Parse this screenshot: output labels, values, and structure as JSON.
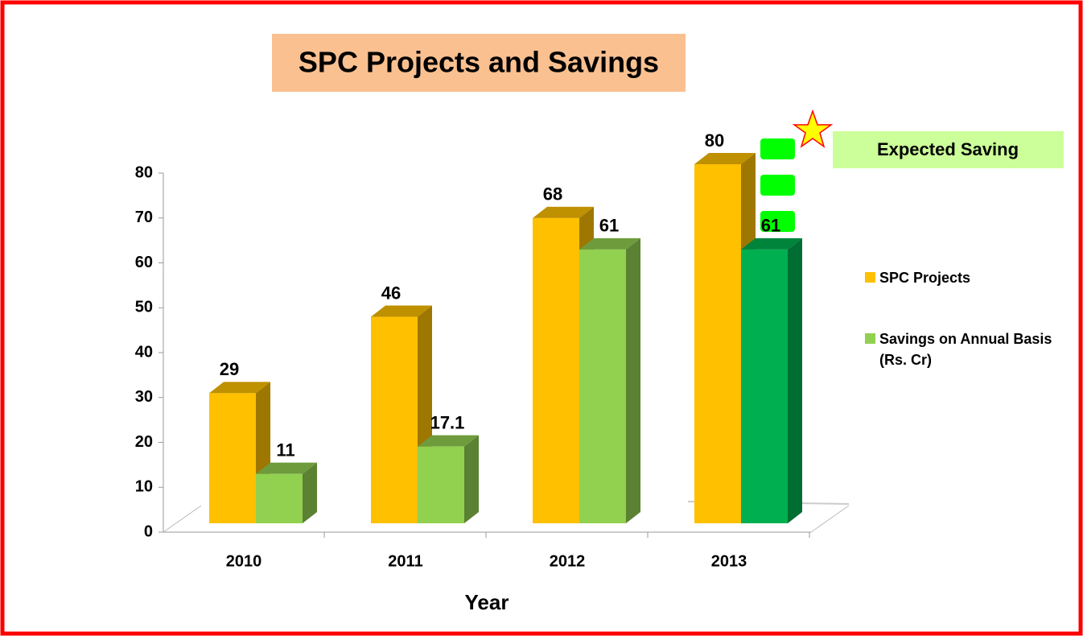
{
  "chart_data": {
    "type": "bar3d",
    "title": "SPC Projects and Savings",
    "categories": [
      "2010",
      "2011",
      "2012",
      "2013"
    ],
    "series": [
      {
        "name": "SPC Projects",
        "color": "#ffc000",
        "values": [
          29,
          46,
          68,
          80
        ]
      },
      {
        "name": "Savings on Annual Basis (Rs. Cr)",
        "color": "#92d050",
        "colors": [
          "#92d050",
          "#92d050",
          "#92d050",
          "#00b050"
        ],
        "values": [
          11,
          17.1,
          61,
          61
        ]
      }
    ],
    "xlabel": "Year",
    "ylim": [
      0,
      80
    ],
    "yticks": [
      0,
      10,
      20,
      30,
      40,
      50,
      60,
      70,
      80
    ],
    "annotation": "Expected Saving",
    "legend": "right"
  }
}
